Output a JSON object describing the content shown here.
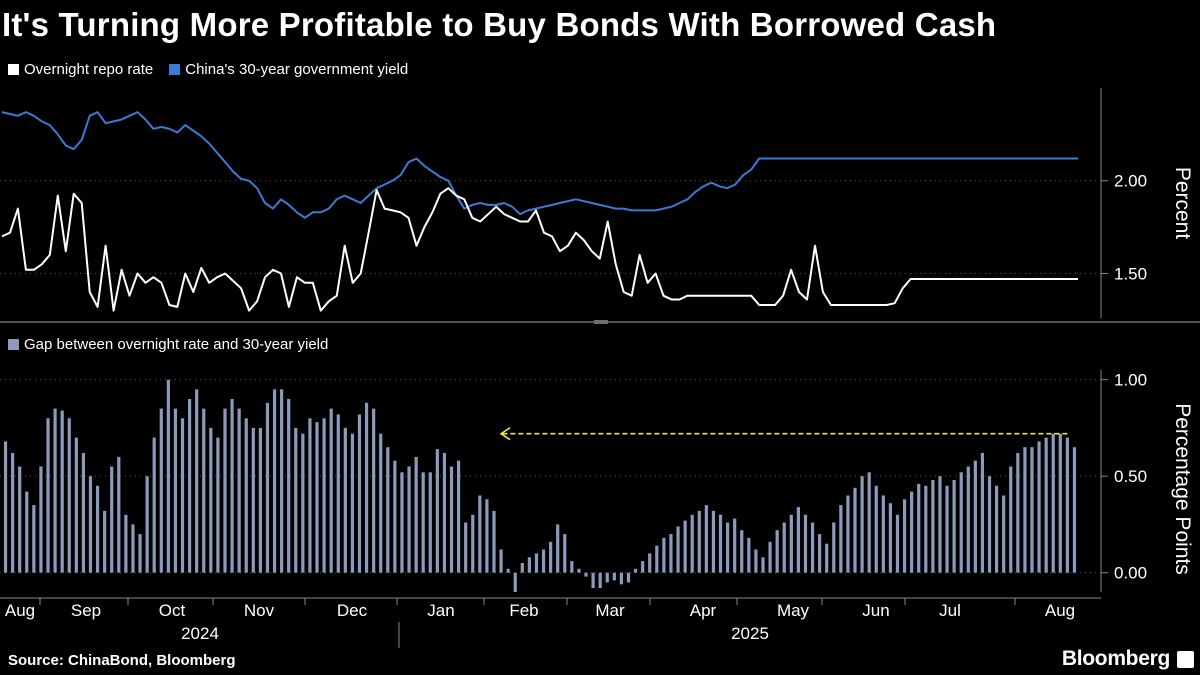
{
  "title": "It's Turning More Profitable to Buy Bonds With Borrowed Cash",
  "source": "Source: ChinaBond, Bloomberg",
  "brand": "Bloomberg",
  "colors": {
    "repo": "#ffffff",
    "yield": "#3a7bd5",
    "gap": "#8c9bbd",
    "arrow": "#f0e442",
    "axis": "#888888"
  },
  "chart_data": [
    {
      "type": "line",
      "ylabel": "Percent",
      "ylim": [
        1.26,
        2.5
      ],
      "yticks": [
        1.5,
        2.0
      ],
      "ytick_labels": [
        "1.50",
        "2.00"
      ],
      "legend_position": "top-left",
      "series": [
        {
          "name": "Overnight repo rate",
          "color": "#ffffff",
          "x": [
            0,
            2,
            4,
            6,
            8,
            10,
            12,
            14,
            16,
            18,
            20,
            22,
            24,
            26,
            28,
            30,
            32,
            34,
            36,
            38,
            40,
            42,
            44,
            46,
            48,
            50,
            52,
            54,
            56,
            58,
            60,
            62,
            64,
            66,
            68,
            70,
            72,
            74,
            76,
            78,
            80,
            82,
            84,
            86,
            88,
            90,
            92,
            94,
            96,
            98,
            100,
            102,
            104,
            106,
            108,
            110,
            112,
            114,
            116,
            118,
            120,
            122,
            124,
            126,
            128,
            130,
            132,
            134,
            136,
            138,
            140,
            142,
            144,
            146,
            148,
            150,
            152,
            154,
            156,
            158,
            160,
            162,
            164,
            166,
            168,
            170,
            172,
            174,
            176,
            178,
            180,
            182,
            184,
            186,
            188,
            190,
            192,
            194,
            196,
            198,
            200,
            202,
            204,
            206,
            208,
            210,
            212,
            214,
            216,
            218,
            220,
            222,
            224,
            226,
            228,
            230,
            232,
            234,
            236,
            238,
            240,
            242,
            244,
            246,
            248,
            250,
            252,
            254,
            256,
            258,
            260,
            262,
            264,
            266,
            268,
            270
          ],
          "values": [
            1.7,
            1.72,
            1.85,
            1.52,
            1.52,
            1.55,
            1.6,
            1.92,
            1.62,
            1.93,
            1.88,
            1.4,
            1.32,
            1.65,
            1.3,
            1.52,
            1.38,
            1.5,
            1.45,
            1.48,
            1.45,
            1.33,
            1.32,
            1.5,
            1.4,
            1.53,
            1.45,
            1.48,
            1.5,
            1.46,
            1.42,
            1.3,
            1.35,
            1.48,
            1.52,
            1.5,
            1.32,
            1.48,
            1.45,
            1.45,
            1.3,
            1.35,
            1.38,
            1.65,
            1.45,
            1.5,
            1.72,
            1.95,
            1.85,
            1.84,
            1.83,
            1.8,
            1.65,
            1.75,
            1.83,
            1.93,
            1.96,
            1.92,
            1.9,
            1.8,
            1.78,
            1.82,
            1.86,
            1.82,
            1.8,
            1.78,
            1.78,
            1.84,
            1.72,
            1.7,
            1.62,
            1.65,
            1.72,
            1.68,
            1.62,
            1.58,
            1.78,
            1.55,
            1.4,
            1.38,
            1.6,
            1.45,
            1.5,
            1.38,
            1.36,
            1.36,
            1.38,
            1.38,
            1.38,
            1.38,
            1.38,
            1.38,
            1.38,
            1.38,
            1.38,
            1.33,
            1.33,
            1.33,
            1.38,
            1.52,
            1.4,
            1.36,
            1.65,
            1.4,
            1.33,
            1.33,
            1.33,
            1.33,
            1.33,
            1.33,
            1.33,
            1.33,
            1.34,
            1.42,
            1.47,
            1.47,
            1.47,
            1.47,
            1.47,
            1.47,
            1.47,
            1.47,
            1.47,
            1.47,
            1.47,
            1.47,
            1.47,
            1.47,
            1.47,
            1.47,
            1.47,
            1.47,
            1.47,
            1.47,
            1.47,
            1.47
          ]
        },
        {
          "name": "China's 30-year government yield",
          "color": "#3a7bd5",
          "x": [
            0,
            2,
            4,
            6,
            8,
            10,
            12,
            14,
            16,
            18,
            20,
            22,
            24,
            26,
            28,
            30,
            32,
            34,
            36,
            38,
            40,
            42,
            44,
            46,
            48,
            50,
            52,
            54,
            56,
            58,
            60,
            62,
            64,
            66,
            68,
            70,
            72,
            74,
            76,
            78,
            80,
            82,
            84,
            86,
            88,
            90,
            92,
            94,
            96,
            98,
            100,
            102,
            104,
            106,
            108,
            110,
            112,
            114,
            116,
            118,
            120,
            122,
            124,
            126,
            128,
            130,
            132,
            134,
            136,
            138,
            140,
            142,
            144,
            146,
            148,
            150,
            152,
            154,
            156,
            158,
            160,
            162,
            164,
            166,
            168,
            170,
            172,
            174,
            176,
            178,
            180,
            182,
            184,
            186,
            188,
            190,
            192,
            194,
            196,
            198,
            200,
            202,
            204,
            206,
            208,
            210,
            212,
            214,
            216,
            218,
            220,
            222,
            224,
            226,
            228,
            230,
            232,
            234,
            236,
            238,
            240,
            242,
            244,
            246,
            248,
            250,
            252,
            254,
            256,
            258,
            260,
            262,
            264,
            266,
            268,
            270
          ],
          "values": [
            2.37,
            2.36,
            2.35,
            2.37,
            2.35,
            2.32,
            2.3,
            2.25,
            2.19,
            2.17,
            2.22,
            2.35,
            2.37,
            2.31,
            2.32,
            2.33,
            2.35,
            2.37,
            2.33,
            2.28,
            2.29,
            2.28,
            2.26,
            2.3,
            2.27,
            2.24,
            2.2,
            2.15,
            2.1,
            2.05,
            2.01,
            2.0,
            1.96,
            1.88,
            1.85,
            1.9,
            1.87,
            1.83,
            1.8,
            1.83,
            1.83,
            1.85,
            1.9,
            1.92,
            1.9,
            1.88,
            1.92,
            1.96,
            1.98,
            2.0,
            2.03,
            2.1,
            2.12,
            2.08,
            2.05,
            2.02,
            2.0,
            1.92,
            1.85,
            1.87,
            1.88,
            1.87,
            1.87,
            1.88,
            1.86,
            1.82,
            1.84,
            1.85,
            1.86,
            1.87,
            1.88,
            1.89,
            1.9,
            1.89,
            1.88,
            1.87,
            1.86,
            1.85,
            1.85,
            1.84,
            1.84,
            1.84,
            1.84,
            1.85,
            1.86,
            1.88,
            1.9,
            1.94,
            1.97,
            1.99,
            1.97,
            1.96,
            1.98,
            2.03,
            2.06,
            2.12,
            2.12,
            2.12,
            2.12,
            2.12,
            2.12,
            2.12,
            2.12,
            2.12,
            2.12,
            2.12,
            2.12,
            2.12,
            2.12,
            2.12,
            2.12,
            2.12,
            2.12,
            2.12,
            2.12,
            2.12,
            2.12,
            2.12,
            2.12,
            2.12,
            2.12,
            2.12,
            2.12,
            2.12,
            2.12,
            2.12,
            2.12,
            2.12,
            2.12,
            2.12,
            2.12,
            2.12,
            2.12,
            2.12,
            2.12,
            2.12
          ]
        }
      ]
    },
    {
      "type": "bar",
      "ylabel": "Percentage Points",
      "ylim": [
        -0.1,
        1.05
      ],
      "yticks": [
        0.0,
        0.5,
        1.0
      ],
      "ytick_labels": [
        "0.00",
        "0.50",
        "1.00"
      ],
      "legend_position": "top-left",
      "series": [
        {
          "name": "Gap between overnight rate and 30-year yield",
          "color": "#8c9bbd",
          "values": [
            0.68,
            0.62,
            0.55,
            0.42,
            0.35,
            0.55,
            0.8,
            0.85,
            0.84,
            0.8,
            0.7,
            0.62,
            0.5,
            0.45,
            0.32,
            0.55,
            0.6,
            0.3,
            0.25,
            0.2,
            0.5,
            0.7,
            0.85,
            1.0,
            0.85,
            0.8,
            0.9,
            0.95,
            0.85,
            0.75,
            0.7,
            0.85,
            0.9,
            0.85,
            0.8,
            0.75,
            0.75,
            0.88,
            0.95,
            0.95,
            0.9,
            0.75,
            0.72,
            0.8,
            0.78,
            0.8,
            0.85,
            0.82,
            0.75,
            0.72,
            0.82,
            0.88,
            0.85,
            0.72,
            0.65,
            0.58,
            0.52,
            0.55,
            0.6,
            0.52,
            0.52,
            0.64,
            0.62,
            0.55,
            0.58,
            0.26,
            0.3,
            0.4,
            0.38,
            0.32,
            0.12,
            0.02,
            -0.1,
            0.05,
            0.08,
            0.1,
            0.12,
            0.16,
            0.25,
            0.2,
            0.06,
            0.02,
            -0.02,
            -0.08,
            -0.08,
            -0.05,
            -0.04,
            -0.06,
            -0.05,
            0.02,
            0.06,
            0.1,
            0.14,
            0.18,
            0.2,
            0.24,
            0.27,
            0.3,
            0.32,
            0.35,
            0.32,
            0.3,
            0.26,
            0.28,
            0.22,
            0.18,
            0.12,
            0.08,
            0.16,
            0.22,
            0.26,
            0.3,
            0.34,
            0.3,
            0.26,
            0.2,
            0.15,
            0.26,
            0.35,
            0.4,
            0.44,
            0.5,
            0.52,
            0.45,
            0.4,
            0.36,
            0.3,
            0.38,
            0.42,
            0.46,
            0.45,
            0.48,
            0.5,
            0.45,
            0.48,
            0.52,
            0.55,
            0.58,
            0.62,
            0.5,
            0.45,
            0.4,
            0.55,
            0.62,
            0.65,
            0.65,
            0.68,
            0.7,
            0.72,
            0.72,
            0.7,
            0.65
          ]
        }
      ],
      "annotation": {
        "type": "arrow",
        "from_index": 150,
        "to_index": 70,
        "value": 0.72
      }
    }
  ],
  "x_axis": {
    "months": [
      "Aug",
      "Sep",
      "Oct",
      "Nov",
      "Dec",
      "Jan",
      "Feb",
      "Mar",
      "Apr",
      "May",
      "Jun",
      "Jul",
      "Aug"
    ],
    "years": [
      "2024",
      "2025"
    ]
  }
}
